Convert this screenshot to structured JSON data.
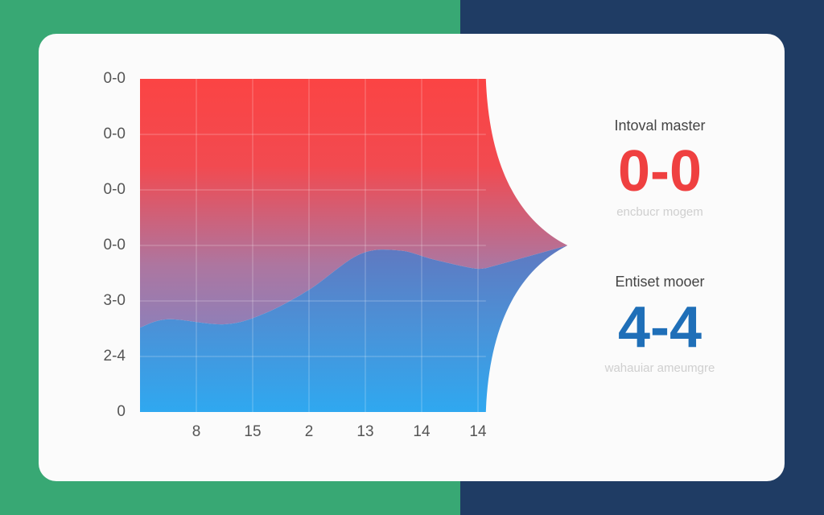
{
  "colors": {
    "bg_left": "#38a874",
    "bg_right": "#1f3c64",
    "red": "#f84444",
    "blue": "#2fa6ee",
    "purple": "#b57a9e",
    "value_red": "#ef4040",
    "value_blue": "#1f6fb8"
  },
  "chart_data": {
    "type": "area",
    "title": "",
    "xlabel": "",
    "ylabel": "",
    "y_tick_labels": [
      "0-0",
      "0-0",
      "0-0",
      "0-0",
      "3-0",
      "2-4",
      "0"
    ],
    "x_tick_labels": [
      "8",
      "15",
      "2",
      "13",
      "14",
      "14"
    ],
    "ylim": [
      0,
      6
    ],
    "xlim": [
      0,
      6.14
    ],
    "grid": true,
    "series": [
      {
        "name": "blue",
        "color": "#2fa6ee",
        "boundary": [
          [
            0,
            1.52
          ],
          [
            0.5,
            1.67
          ],
          [
            1.5,
            1.58
          ],
          [
            2.2,
            1.77
          ],
          [
            3,
            2.2
          ],
          [
            3.9,
            2.84
          ],
          [
            4.6,
            2.91
          ],
          [
            5.2,
            2.75
          ],
          [
            5.9,
            2.59
          ],
          [
            6.14,
            2.59
          ]
        ]
      },
      {
        "name": "red",
        "color": "#f84444",
        "top": 6
      }
    ],
    "convergence_point": [
      7.59,
      3.0
    ]
  },
  "stats": [
    {
      "label": "Intoval master",
      "value": "0-0",
      "sub": "encbucr mogem"
    },
    {
      "label": "Entiset mooer",
      "value": "4-4",
      "sub": "wahauiar ameumgre"
    }
  ]
}
